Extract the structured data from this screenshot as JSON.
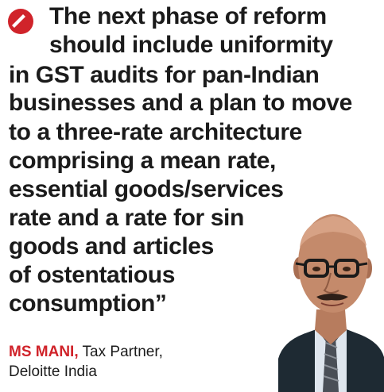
{
  "quote": {
    "lines": [
      "The next phase of reform",
      "should include uniformity",
      "in GST audits for pan-Indian",
      "businesses and a plan to move",
      "to a three-rate architecture",
      "comprising a mean rate,",
      "essential goods/services",
      "rate and a rate for sin",
      "goods and articles",
      "of ostentatious",
      "consumption”"
    ]
  },
  "attribution": {
    "name": "MS MANI,",
    "title": " Tax Partner,",
    "company": "Deloitte India"
  },
  "colors": {
    "accent": "#d0232a",
    "text": "#1b1b1b"
  },
  "icons": {
    "logo": "quote-logo-icon",
    "portrait": "speaker-portrait"
  }
}
